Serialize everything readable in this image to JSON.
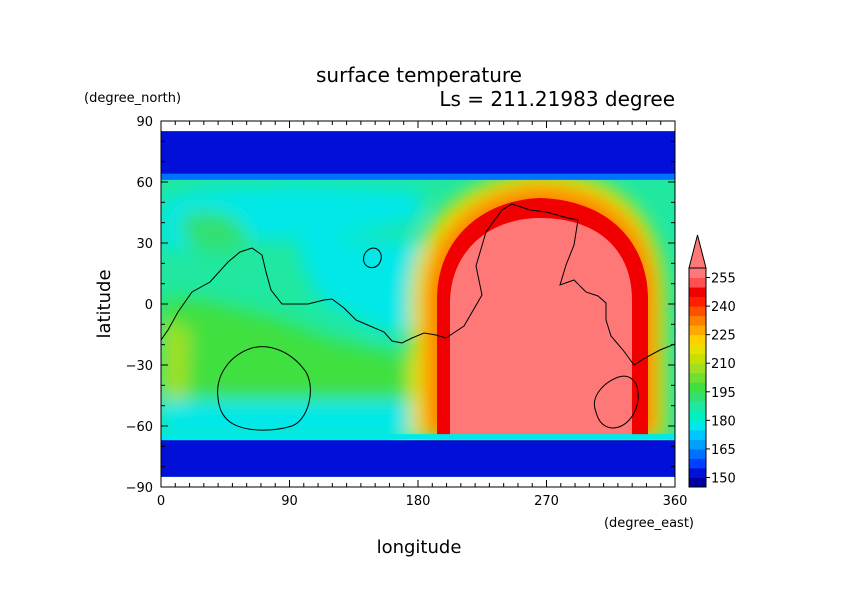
{
  "chart_data": {
    "type": "heatmap",
    "title": "surface temperature",
    "subtitle": "Ls = 211.21983 degree",
    "xlabel": "longitude",
    "ylabel": "latitude",
    "x_units": "(degree_east)",
    "y_units": "(degree_north)",
    "xlim": [
      0,
      360
    ],
    "ylim": [
      -90,
      90
    ],
    "data_lat_range": [
      -85,
      85
    ],
    "x_ticks": [
      {
        "value": 0,
        "label": "0"
      },
      {
        "value": 90,
        "label": "90"
      },
      {
        "value": 180,
        "label": "180"
      },
      {
        "value": 270,
        "label": "270"
      },
      {
        "value": 360,
        "label": "360"
      }
    ],
    "y_ticks": [
      {
        "value": 90,
        "label": "90"
      },
      {
        "value": 60,
        "label": "60"
      },
      {
        "value": 30,
        "label": "30"
      },
      {
        "value": 0,
        "label": "0"
      },
      {
        "value": -30,
        "label": "−30"
      },
      {
        "value": -60,
        "label": "−60"
      },
      {
        "value": -90,
        "label": "−90"
      }
    ],
    "colorbar": {
      "levels": [
        145,
        150,
        155,
        160,
        165,
        170,
        175,
        180,
        185,
        190,
        195,
        200,
        205,
        210,
        215,
        220,
        225,
        230,
        235,
        240,
        245,
        250,
        255,
        260
      ],
      "colors": [
        "#0000a0",
        "#0010d8",
        "#0040ff",
        "#0070ff",
        "#00a0ff",
        "#00c8ff",
        "#00e8e8",
        "#00f0c0",
        "#20e8a0",
        "#30e070",
        "#40e040",
        "#70e030",
        "#a0e020",
        "#c8e000",
        "#e8e000",
        "#ffd000",
        "#ffa800",
        "#ff8000",
        "#ff5000",
        "#ff2000",
        "#f00000",
        "#ff5050",
        "#ff7878"
      ],
      "tick_labels": [
        "150",
        "165",
        "180",
        "195",
        "210",
        "225",
        "240",
        "255"
      ],
      "overflow_color": "#ff7878"
    },
    "annotations": [
      "surface temperature",
      "Ls = 211.21983 degree"
    ]
  }
}
